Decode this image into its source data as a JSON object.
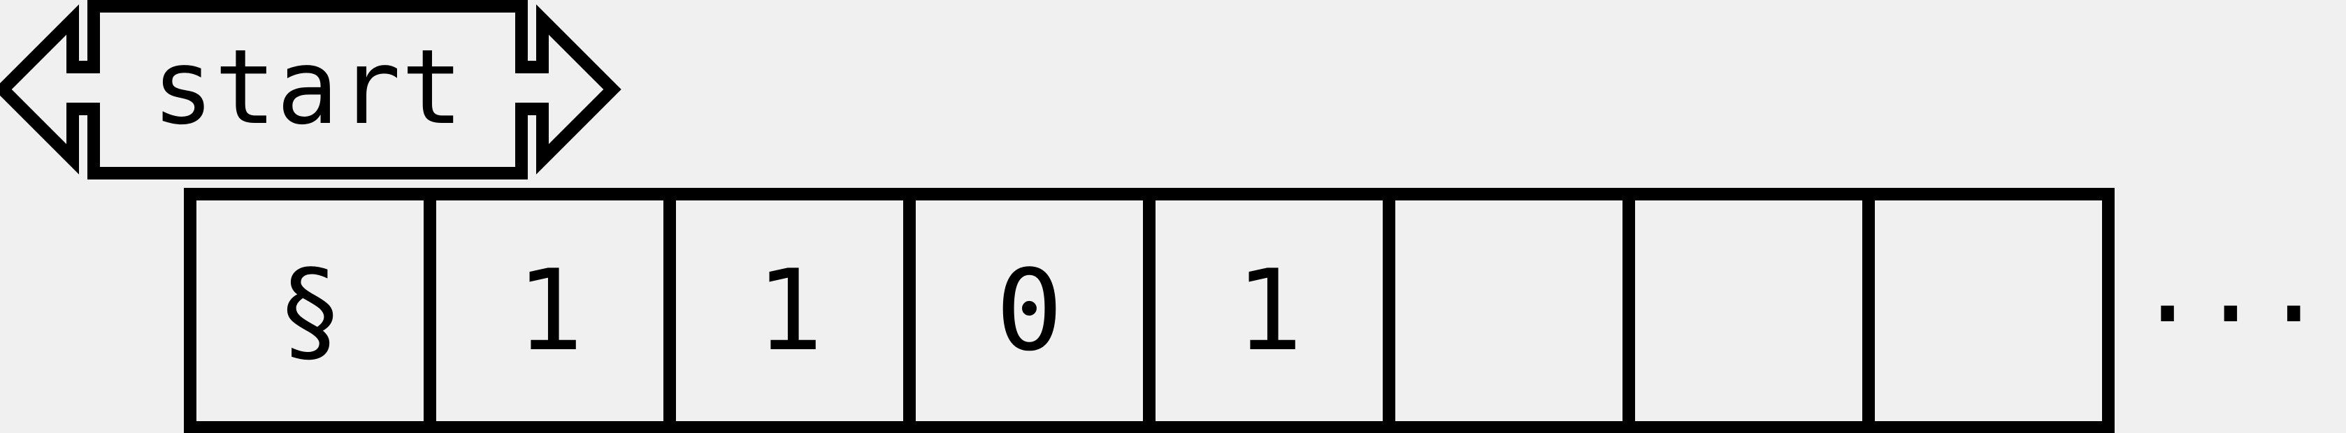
{
  "state_label": "start",
  "tape": {
    "cells": [
      "§",
      "1",
      "1",
      "0",
      "1",
      "",
      "",
      ""
    ],
    "continuation": "..."
  },
  "colors": {
    "ink": "#000000",
    "background": "#f0f0f0"
  }
}
